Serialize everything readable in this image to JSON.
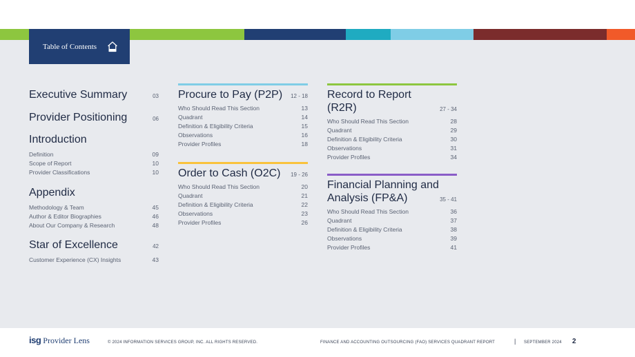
{
  "colors": {
    "bar": [
      "#8dc63f",
      "#ffffff",
      "#8dc63f",
      "#213f73",
      "#1fabc1",
      "#7fcde6",
      "#7b2c2c",
      "#f15a29"
    ],
    "tab": "#213f73",
    "p2p": "#7fcde6",
    "o2c": "#f9c23c",
    "r2r": "#8dc63f",
    "fpa": "#8a5cc7"
  },
  "header": {
    "tab_label": "Table of Contents",
    "home_icon": "home-icon"
  },
  "col1": {
    "executive": {
      "title": "Executive Summary",
      "page": "03"
    },
    "positioning": {
      "title": "Provider Positioning",
      "page": "06"
    },
    "introduction": {
      "title": "Introduction",
      "items": [
        {
          "label": "Definition",
          "page": "09"
        },
        {
          "label": "Scope of Report",
          "page": "10"
        },
        {
          "label": "Provider Classifications",
          "page": "10"
        }
      ]
    },
    "appendix": {
      "title": "Appendix",
      "items": [
        {
          "label": "Methodology & Team",
          "page": "45"
        },
        {
          "label": "Author & Editor Biographies",
          "page": "46"
        },
        {
          "label": "About Our Company & Research",
          "page": "48"
        }
      ]
    },
    "star": {
      "title": "Star of Excellence",
      "page": "42",
      "items": [
        {
          "label": "Customer Experience (CX) Insights",
          "page": "43"
        }
      ]
    }
  },
  "col2": {
    "p2p": {
      "title": "Procure to Pay (P2P)",
      "page": "12 - 18",
      "items": [
        {
          "label": "Who Should Read This Section",
          "page": "13"
        },
        {
          "label": "Quadrant",
          "page": "14"
        },
        {
          "label": "Definition & Eligibility Criteria",
          "page": "15"
        },
        {
          "label": "Observations",
          "page": "16"
        },
        {
          "label": "Provider Profiles",
          "page": "18"
        }
      ]
    },
    "o2c": {
      "title": "Order to Cash (O2C)",
      "page": "19 - 26",
      "items": [
        {
          "label": "Who Should Read This Section",
          "page": "20"
        },
        {
          "label": "Quadrant",
          "page": "21"
        },
        {
          "label": "Definition & Eligibility Criteria",
          "page": "22"
        },
        {
          "label": "Observations",
          "page": "23"
        },
        {
          "label": "Provider Profiles",
          "page": "26"
        }
      ]
    }
  },
  "col3": {
    "r2r": {
      "title_line1": "Record to Report",
      "title_line2": "(R2R)",
      "page": "27 - 34",
      "items": [
        {
          "label": "Who Should Read This Section",
          "page": "28"
        },
        {
          "label": "Quadrant",
          "page": "29"
        },
        {
          "label": "Definition & Eligibility Criteria",
          "page": "30"
        },
        {
          "label": "Observations",
          "page": "31"
        },
        {
          "label": "Provider Profiles",
          "page": "34"
        }
      ]
    },
    "fpa": {
      "title_line1": "Financial Planning and",
      "title_line2": "Analysis (FP&A)",
      "page": "35 - 41",
      "items": [
        {
          "label": "Who Should Read This Section",
          "page": "36"
        },
        {
          "label": "Quadrant",
          "page": "37"
        },
        {
          "label": "Definition & Eligibility Criteria",
          "page": "38"
        },
        {
          "label": "Observations",
          "page": "39"
        },
        {
          "label": "Provider Profiles",
          "page": "41"
        }
      ]
    }
  },
  "footer": {
    "logo_isg": "isg",
    "logo_rest": "Provider Lens",
    "copyright": "© 2024 INFORMATION SERVICES GROUP, INC. ALL RIGHTS RESERVED.",
    "report_title": "FINANCE AND ACCOUNTING OUTSOURCING (FAO) SERVICES QUADRANT REPORT",
    "separator": "|",
    "date": "SEPTEMBER 2024",
    "page_number": "2"
  }
}
